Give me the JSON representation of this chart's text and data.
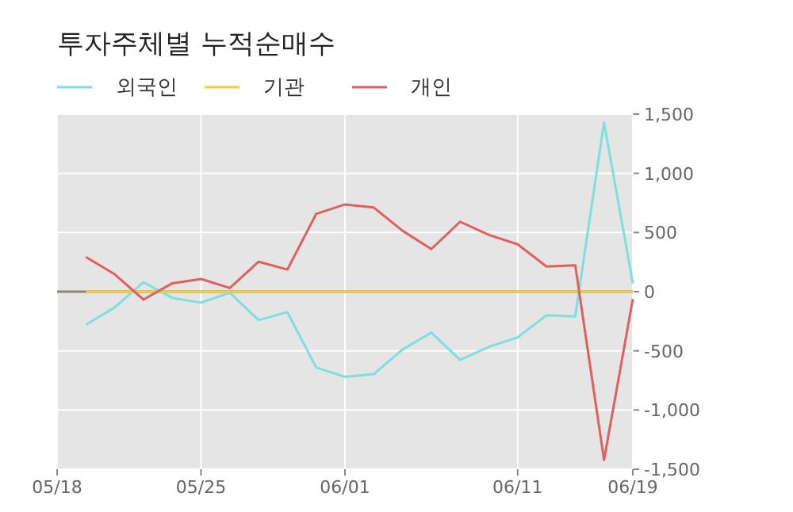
{
  "chart_data": {
    "type": "line",
    "title": "투자주체별 누적순매수",
    "categories": [
      "05/18",
      null,
      null,
      null,
      null,
      "05/25",
      null,
      null,
      null,
      null,
      "06/01",
      null,
      null,
      null,
      null,
      null,
      "06/11",
      null,
      null,
      null,
      "06/19"
    ],
    "series": [
      {
        "name": "외국인",
        "color": "#7fdfdf",
        "values": [
          null,
          -280,
          -133,
          80,
          -53,
          -93,
          -9,
          -240,
          -173,
          -640,
          -720,
          -697,
          -488,
          -346,
          -577,
          -466,
          -386,
          -200,
          -209,
          1430,
          71
        ]
      },
      {
        "name": "기관",
        "color": "#f2cf3a",
        "values": [
          null,
          0,
          0,
          0,
          0,
          0,
          0,
          0,
          0,
          0,
          0,
          0,
          0,
          0,
          0,
          0,
          0,
          0,
          0,
          0,
          0
        ]
      },
      {
        "name": "개인",
        "color": "#e06060",
        "values": [
          null,
          293,
          147,
          -67,
          71,
          107,
          31,
          253,
          187,
          657,
          737,
          711,
          515,
          360,
          591,
          480,
          400,
          213,
          222,
          -1421,
          -62
        ]
      }
    ],
    "ylim": [
      -1500,
      1500
    ],
    "yticks": [
      {
        "value": -1500,
        "label": "-1,500"
      },
      {
        "value": -1000,
        "label": "-1,000"
      },
      -500,
      0,
      500,
      {
        "value": 1000,
        "label": "1,000"
      },
      {
        "value": 1500,
        "label": "1,500"
      }
    ],
    "ref_lines": [
      {
        "axis": "y",
        "value": 0,
        "color": "#8a8670"
      }
    ],
    "grid": true,
    "legend": "top left",
    "line_style": "solid",
    "marker": "none"
  }
}
